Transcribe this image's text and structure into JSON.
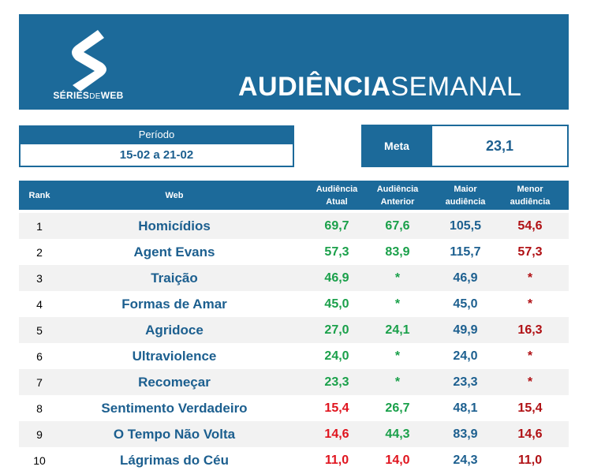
{
  "brand": {
    "logo_text_bold_1": "SÉRIES",
    "logo_text_light": "DE",
    "logo_text_bold_2": "WEB"
  },
  "title": {
    "bold": "AUDIÊNCIA",
    "light": "SEMANAL"
  },
  "period": {
    "label": "Período",
    "value": "15-02 a 21-02"
  },
  "meta": {
    "label": "Meta",
    "value": "23,1"
  },
  "colors": {
    "header_blue": "#1c6a9a",
    "text_blue": "#1c5f8f",
    "green": "#1aa04a",
    "red": "#e0141e",
    "dark_red": "#b01014"
  },
  "table": {
    "headers": {
      "rank": "Rank",
      "web": "Web",
      "atual": "Audiência\nAtual",
      "anterior": "Audiência\nAnterior",
      "maior": "Maior\naudiência",
      "menor": "Menor\naudiência"
    },
    "rows": [
      {
        "rank": "1",
        "web": "Homicídios",
        "atual": "69,7",
        "anterior": "67,6",
        "maior": "105,5",
        "menor": "54,6"
      },
      {
        "rank": "2",
        "web": "Agent Evans",
        "atual": "57,3",
        "anterior": "83,9",
        "maior": "115,7",
        "menor": "57,3"
      },
      {
        "rank": "3",
        "web": "Traição",
        "atual": "46,9",
        "anterior": "*",
        "maior": "46,9",
        "menor": "*"
      },
      {
        "rank": "4",
        "web": "Formas de Amar",
        "atual": "45,0",
        "anterior": "*",
        "maior": "45,0",
        "menor": "*"
      },
      {
        "rank": "5",
        "web": "Agridoce",
        "atual": "27,0",
        "anterior": "24,1",
        "maior": "49,9",
        "menor": "16,3"
      },
      {
        "rank": "6",
        "web": "Ultraviolence",
        "atual": "24,0",
        "anterior": "*",
        "maior": "24,0",
        "menor": "*"
      },
      {
        "rank": "7",
        "web": "Recomeçar",
        "atual": "23,3",
        "anterior": "*",
        "maior": "23,3",
        "menor": "*"
      },
      {
        "rank": "8",
        "web": "Sentimento Verdadeiro",
        "atual": "15,4",
        "anterior": "26,7",
        "maior": "48,1",
        "menor": "15,4"
      },
      {
        "rank": "9",
        "web": "O Tempo Não Volta",
        "atual": "14,6",
        "anterior": "44,3",
        "maior": "83,9",
        "menor": "14,6"
      },
      {
        "rank": "10",
        "web": "Lágrimas do Céu",
        "atual": "11,0",
        "anterior": "14,0",
        "maior": "24,3",
        "menor": "11,0"
      }
    ]
  }
}
